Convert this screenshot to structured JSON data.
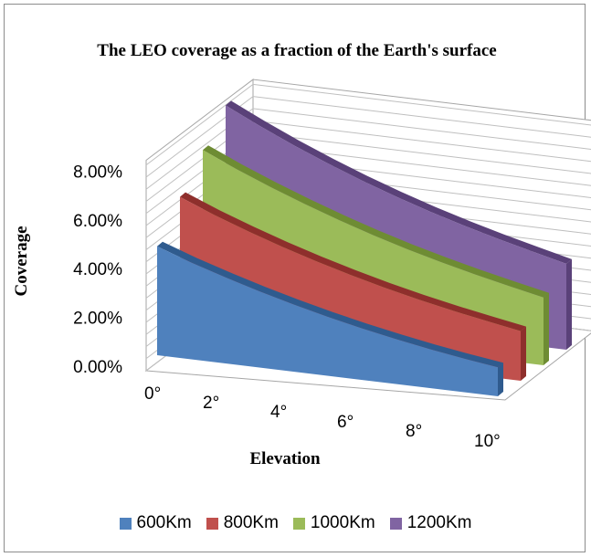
{
  "chart_data": {
    "type": "area",
    "title": "The LEO coverage as a fraction of the Earth's surface",
    "xlabel": "Elevation",
    "ylabel": "Coverage",
    "x_ticks": [
      "0°",
      "2°",
      "4°",
      "6°",
      "8°",
      "10°"
    ],
    "y_ticks": [
      "0.00%",
      "2.00%",
      "4.00%",
      "6.00%",
      "8.00%"
    ],
    "ylim": [
      0,
      8
    ],
    "x": [
      0,
      1,
      2,
      3,
      4,
      5,
      6,
      7,
      8,
      9,
      10
    ],
    "series": [
      {
        "name": "600Km",
        "color": "#4f81bd",
        "side_color": "#2f5b8e",
        "values": [
          4.5,
          4.0,
          3.56,
          3.15,
          2.78,
          2.44,
          2.13,
          1.86,
          1.61,
          1.39,
          1.2
        ]
      },
      {
        "name": "800Km",
        "color": "#c0504d",
        "side_color": "#8e2f2c",
        "values": [
          5.9,
          5.33,
          4.82,
          4.35,
          3.92,
          3.53,
          3.17,
          2.85,
          2.56,
          2.3,
          2.05
        ]
      },
      {
        "name": "1000Km",
        "color": "#9bbb59",
        "side_color": "#6e8c33",
        "values": [
          7.2,
          6.57,
          6.0,
          5.47,
          4.98,
          4.53,
          4.12,
          3.75,
          3.41,
          3.1,
          2.8
        ]
      },
      {
        "name": "1200Km",
        "color": "#8064a2",
        "side_color": "#5a4179",
        "values": [
          8.4,
          7.72,
          7.09,
          6.51,
          5.97,
          5.48,
          5.03,
          4.62,
          4.24,
          3.89,
          3.55
        ]
      }
    ],
    "grid": true,
    "legend_position": "bottom"
  }
}
